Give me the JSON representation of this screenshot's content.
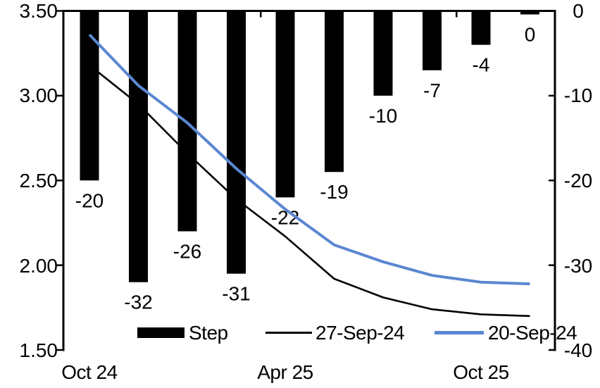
{
  "chart_data": {
    "type": "combo",
    "title": "",
    "num_categories": 10,
    "x_axis": {
      "tick_labels": [
        {
          "index": 0,
          "label": "Oct 24"
        },
        {
          "index": 4,
          "label": "Apr 25"
        },
        {
          "index": 8,
          "label": "Oct 25"
        }
      ],
      "boundary_ticks": [
        3.5,
        7.5
      ]
    },
    "left_axis": {
      "min": 1.5,
      "max": 3.5,
      "tick_labels": [
        "3.50",
        "3.00",
        "2.50",
        "2.00",
        "1.50"
      ]
    },
    "right_axis": {
      "min": -40,
      "max": 0,
      "tick_labels": [
        "0",
        "-10",
        "-20",
        "-30",
        "-40"
      ]
    },
    "series": [
      {
        "name": "Step",
        "type": "bar",
        "axis": "right",
        "color": "#000000",
        "values": [
          -20,
          -32,
          -26,
          -31,
          -22,
          -19,
          -10,
          -7,
          -4,
          0
        ],
        "data_labels": [
          "-20",
          "-32",
          "-26",
          "-31",
          "-22",
          "-19",
          "-10",
          "-7",
          "-4",
          "0"
        ]
      },
      {
        "name": "27-Sep-24",
        "type": "line",
        "axis": "left",
        "color": "#000000",
        "values": [
          3.18,
          2.95,
          2.66,
          2.39,
          2.17,
          1.92,
          1.81,
          1.74,
          1.71,
          1.7
        ]
      },
      {
        "name": "20-Sep-24",
        "type": "line",
        "axis": "left",
        "color": "#5B87D1",
        "values": [
          3.36,
          3.06,
          2.84,
          2.57,
          2.33,
          2.12,
          2.02,
          1.94,
          1.9,
          1.89
        ]
      }
    ],
    "legend": {
      "position": "bottom",
      "entries": [
        "Step",
        "27-Sep-24",
        "20-Sep-24"
      ]
    }
  }
}
